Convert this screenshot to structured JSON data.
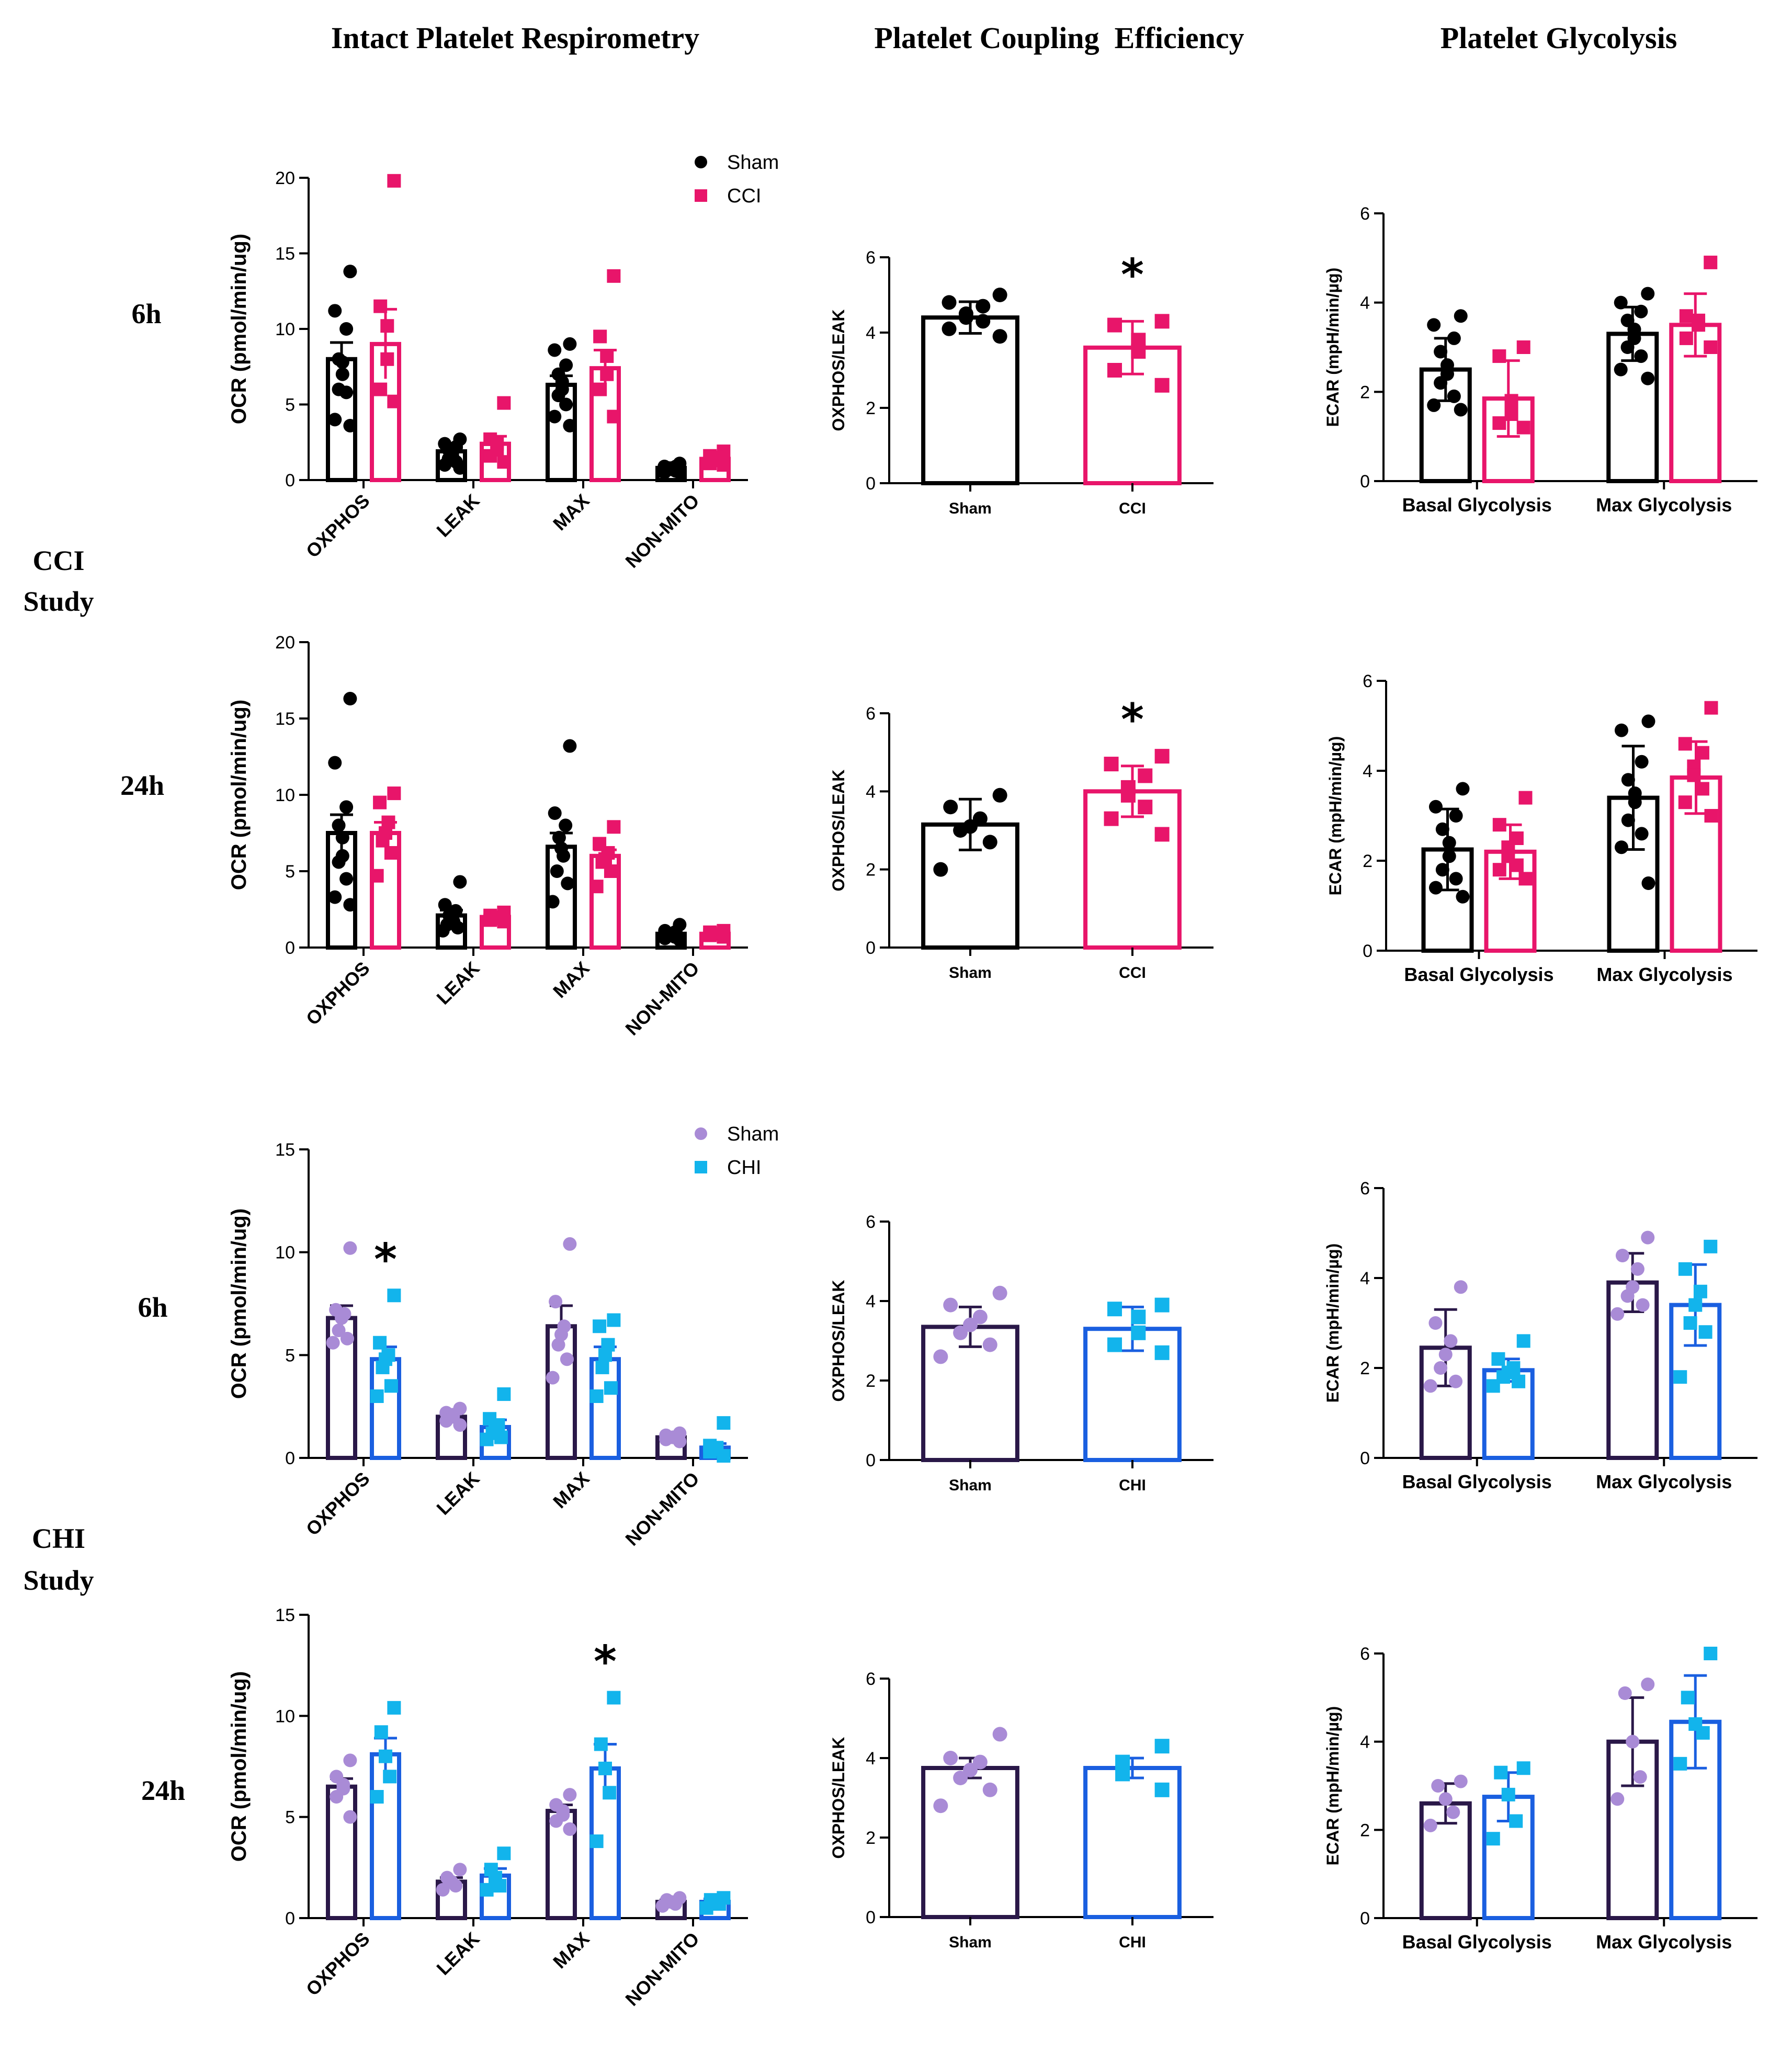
{
  "column_titles": [
    "Intact Platelet Respirometry",
    "Platelet Coupling  Efficiency",
    "Platelet Glycolysis"
  ],
  "study_labels": {
    "cci": [
      "CCI",
      "Study"
    ],
    "chi": [
      "CHI",
      "Study"
    ]
  },
  "time_labels": [
    "6h",
    "24h",
    "6h",
    "24h"
  ],
  "colors": {
    "sham_cci": "#000000",
    "cci": "#E8156A",
    "sham_chi_fill": "#A98BD6",
    "sham_chi_bar": "#2A1848",
    "chi_fill": "#12B4EC",
    "chi_bar": "#1A5FE0"
  },
  "chart_data": [
    {
      "type": "bar",
      "title": "Intact Platelet Respirometry",
      "row": "CCI 6h",
      "ylabel": "OCR (pmol/min/ug)",
      "ylim": [
        0,
        20
      ],
      "yticks": [
        0,
        5,
        10,
        15,
        20
      ],
      "categories": [
        "OXPHOS",
        "LEAK",
        "MAX",
        "NON-MITO"
      ],
      "legend": [
        "Sham",
        "CCI"
      ],
      "legend_position": "top-right",
      "series": [
        {
          "name": "Sham",
          "values": [
            8.0,
            1.9,
            6.3,
            0.8
          ],
          "errors": [
            1.1,
            0.25,
            0.6,
            0.1
          ],
          "points": [
            [
              13.8,
              11.2,
              10.0,
              8.0,
              7.8,
              7.0,
              6.0,
              5.8,
              4.0,
              3.6
            ],
            [
              2.7,
              2.4,
              2.2,
              2.0,
              1.8,
              1.6,
              1.4,
              1.2,
              1.0,
              0.8
            ],
            [
              9.0,
              8.6,
              7.6,
              7.0,
              6.5,
              6.0,
              5.6,
              5.0,
              4.2,
              3.6
            ],
            [
              1.1,
              0.9,
              0.9,
              0.8,
              0.8,
              0.7,
              0.7,
              0.6,
              0.5,
              0.5
            ]
          ]
        },
        {
          "name": "CCI",
          "values": [
            9.0,
            2.4,
            7.4,
            1.4
          ],
          "errors": [
            2.3,
            0.5,
            1.2,
            0.3
          ],
          "points": [
            [
              19.8,
              11.5,
              10.2,
              8.0,
              6.0,
              5.2
            ],
            [
              5.1,
              2.7,
              2.4,
              2.0,
              1.6,
              1.2
            ],
            [
              13.5,
              9.5,
              8.2,
              7.0,
              6.0,
              4.2
            ],
            [
              1.9,
              1.6,
              1.5,
              1.3,
              1.1,
              1.0
            ]
          ]
        }
      ],
      "significant": []
    },
    {
      "type": "bar",
      "title": "Platelet Coupling  Efficiency",
      "row": "CCI 6h",
      "ylabel": "OXPHOS/LEAK",
      "ylim": [
        0,
        6
      ],
      "yticks": [
        0,
        2,
        4,
        6
      ],
      "categories": [
        "Sham",
        "CCI"
      ],
      "values": [
        4.4,
        3.6
      ],
      "errors": [
        0.42,
        0.7
      ],
      "points": [
        [
          5.0,
          4.8,
          4.7,
          4.5,
          4.4,
          4.3,
          4.1,
          3.9
        ],
        [
          4.3,
          4.2,
          3.8,
          3.5,
          3.0,
          2.6
        ]
      ],
      "significant": [
        "CCI"
      ]
    },
    {
      "type": "bar",
      "title": "Platelet Glycolysis",
      "row": "CCI 6h",
      "ylabel": "ECAR (mpH/min/µg)",
      "ylim": [
        0,
        6
      ],
      "yticks": [
        0,
        2,
        4,
        6
      ],
      "categories": [
        "Basal Glycolysis",
        "Max Glycolysis"
      ],
      "series": [
        {
          "name": "Sham",
          "values": [
            2.5,
            3.3
          ],
          "errors": [
            0.7,
            0.6
          ],
          "points": [
            [
              3.7,
              3.5,
              3.2,
              2.9,
              2.6,
              2.4,
              2.2,
              1.9,
              1.7,
              1.6
            ],
            [
              4.2,
              4.0,
              3.8,
              3.6,
              3.4,
              3.2,
              3.0,
              2.8,
              2.5,
              2.3
            ]
          ]
        },
        {
          "name": "CCI",
          "values": [
            1.85,
            3.5
          ],
          "errors": [
            0.85,
            0.7
          ],
          "points": [
            [
              3.0,
              2.8,
              1.8,
              1.5,
              1.3,
              1.2
            ],
            [
              4.9,
              3.7,
              3.6,
              3.5,
              3.2,
              3.0
            ]
          ]
        }
      ]
    },
    {
      "type": "bar",
      "title": "Intact Platelet Respirometry",
      "row": "CCI 24h",
      "ylabel": "OCR (pmol/min/ug)",
      "ylim": [
        0,
        20
      ],
      "yticks": [
        0,
        5,
        10,
        15,
        20
      ],
      "categories": [
        "OXPHOS",
        "LEAK",
        "MAX",
        "NON-MITO"
      ],
      "series": [
        {
          "name": "Sham",
          "values": [
            7.5,
            2.1,
            6.6,
            0.9
          ],
          "errors": [
            1.2,
            0.35,
            0.9,
            0.1
          ],
          "points": [
            [
              16.3,
              12.1,
              9.2,
              8.0,
              7.2,
              6.0,
              5.6,
              4.5,
              3.3,
              2.8
            ],
            [
              4.3,
              2.8,
              2.4,
              2.1,
              1.9,
              1.7,
              1.5,
              1.3,
              1.1
            ],
            [
              13.2,
              8.8,
              8.0,
              7.2,
              6.5,
              6.0,
              5.0,
              4.2,
              3.0
            ],
            [
              1.5,
              1.1,
              1.0,
              0.9,
              0.8,
              0.7,
              0.6,
              0.5
            ]
          ]
        },
        {
          "name": "CCI",
          "values": [
            7.5,
            2.0,
            6.0,
            0.9
          ],
          "errors": [
            0.7,
            0.15,
            0.4,
            0.1
          ],
          "points": [
            [
              10.1,
              9.5,
              8.2,
              7.5,
              7.0,
              6.2,
              4.7
            ],
            [
              2.3,
              2.1,
              2.0,
              1.9,
              1.8,
              1.7
            ],
            [
              7.9,
              6.8,
              6.2,
              5.8,
              5.6,
              5.0,
              4.0
            ],
            [
              1.1,
              1.0,
              0.9,
              0.9,
              0.8,
              0.7
            ]
          ]
        }
      ]
    },
    {
      "type": "bar",
      "title": "Platelet Coupling  Efficiency",
      "row": "CCI 24h",
      "ylabel": "OXPHOS/LEAK",
      "ylim": [
        0,
        6
      ],
      "yticks": [
        0,
        2,
        4,
        6
      ],
      "categories": [
        "Sham",
        "CCI"
      ],
      "values": [
        3.15,
        4.0
      ],
      "errors": [
        0.65,
        0.65
      ],
      "points": [
        [
          3.9,
          3.6,
          3.3,
          3.1,
          3.0,
          2.7,
          2.0
        ],
        [
          4.9,
          4.7,
          4.4,
          4.1,
          3.9,
          3.6,
          3.3,
          2.9
        ]
      ],
      "significant": [
        "CCI"
      ]
    },
    {
      "type": "bar",
      "title": "Platelet Glycolysis",
      "row": "CCI 24h",
      "ylabel": "ECAR (mpH/min/µg)",
      "ylim": [
        0,
        6
      ],
      "yticks": [
        0,
        2,
        4,
        6
      ],
      "categories": [
        "Basal Glycolysis",
        "Max Glycolysis"
      ],
      "series": [
        {
          "name": "Sham",
          "values": [
            2.25,
            3.4
          ],
          "errors": [
            0.9,
            1.15
          ],
          "points": [
            [
              3.6,
              3.2,
              3.0,
              2.7,
              2.4,
              2.1,
              1.8,
              1.6,
              1.4,
              1.2
            ],
            [
              5.1,
              4.9,
              4.2,
              3.8,
              3.5,
              3.3,
              2.9,
              2.6,
              2.3,
              1.5
            ]
          ]
        },
        {
          "name": "CCI",
          "values": [
            2.2,
            3.85
          ],
          "errors": [
            0.6,
            0.8
          ],
          "points": [
            [
              3.4,
              2.8,
              2.5,
              2.3,
              2.1,
              1.9,
              1.8,
              1.6
            ],
            [
              5.4,
              4.6,
              4.4,
              4.1,
              3.9,
              3.6,
              3.3,
              3.0
            ]
          ]
        }
      ]
    },
    {
      "type": "bar",
      "title": "Intact Platelet Respirometry",
      "row": "CHI 6h",
      "ylabel": "OCR (pmol/min/ug)",
      "ylim": [
        0,
        15
      ],
      "yticks": [
        0,
        5,
        10,
        15
      ],
      "categories": [
        "OXPHOS",
        "LEAK",
        "MAX",
        "NON-MITO"
      ],
      "legend": [
        "Sham",
        "CHI"
      ],
      "legend_position": "top-right",
      "series": [
        {
          "name": "Sham",
          "values": [
            6.8,
            2.0,
            6.4,
            1.0
          ],
          "errors": [
            0.6,
            0.15,
            1.0,
            0.1
          ],
          "points": [
            [
              10.2,
              7.2,
              7.0,
              6.8,
              6.2,
              5.8,
              5.6
            ],
            [
              2.4,
              2.2,
              2.1,
              2.0,
              1.8,
              1.6
            ],
            [
              10.4,
              7.6,
              6.4,
              6.0,
              5.5,
              4.8,
              3.9
            ],
            [
              1.2,
              1.1,
              1.0,
              1.0,
              0.9,
              0.8
            ]
          ]
        },
        {
          "name": "CHI",
          "values": [
            4.8,
            1.5,
            4.8,
            0.5
          ],
          "errors": [
            0.6,
            0.35,
            0.6,
            0.2
          ],
          "points": [
            [
              7.9,
              5.6,
              5.0,
              4.8,
              4.4,
              3.5,
              3.0
            ],
            [
              3.1,
              1.9,
              1.6,
              1.4,
              1.2,
              1.0,
              0.9
            ],
            [
              6.7,
              6.4,
              5.5,
              5.0,
              4.4,
              3.4,
              3.0
            ],
            [
              1.7,
              0.6,
              0.5,
              0.4,
              0.3,
              0.1
            ]
          ]
        }
      ],
      "significant": [
        "OXPHOS"
      ]
    },
    {
      "type": "bar",
      "title": "Platelet Coupling  Efficiency",
      "row": "CHI 6h",
      "ylabel": "OXPHOS/LEAK",
      "ylim": [
        0,
        6
      ],
      "yticks": [
        0,
        2,
        4,
        6
      ],
      "categories": [
        "Sham",
        "CHI"
      ],
      "values": [
        3.35,
        3.3
      ],
      "errors": [
        0.5,
        0.55
      ],
      "points": [
        [
          4.2,
          3.9,
          3.6,
          3.4,
          3.2,
          2.9,
          2.6
        ],
        [
          3.9,
          3.8,
          3.6,
          3.2,
          2.9,
          2.7
        ]
      ],
      "significant": []
    },
    {
      "type": "bar",
      "title": "Platelet Glycolysis",
      "row": "CHI 6h",
      "ylabel": "ECAR (mpH/min/µg)",
      "ylim": [
        0,
        6
      ],
      "yticks": [
        0,
        2,
        4,
        6
      ],
      "categories": [
        "Basal Glycolysis",
        "Max Glycolysis"
      ],
      "series": [
        {
          "name": "Sham",
          "values": [
            2.45,
            3.9
          ],
          "errors": [
            0.85,
            0.65
          ],
          "points": [
            [
              3.8,
              3.0,
              2.6,
              2.3,
              2.0,
              1.7,
              1.6
            ],
            [
              4.9,
              4.5,
              4.2,
              3.8,
              3.6,
              3.4,
              3.2
            ]
          ]
        },
        {
          "name": "CHI",
          "values": [
            1.95,
            3.4
          ],
          "errors": [
            0.25,
            0.9
          ],
          "points": [
            [
              2.6,
              2.2,
              2.0,
              1.9,
              1.8,
              1.7,
              1.6
            ],
            [
              4.7,
              4.2,
              3.7,
              3.4,
              3.0,
              2.8,
              1.8
            ]
          ]
        }
      ]
    },
    {
      "type": "bar",
      "title": "Intact Platelet Respirometry",
      "row": "CHI 24h",
      "ylabel": "OCR (pmol/min/ug)",
      "ylim": [
        0,
        15
      ],
      "yticks": [
        0,
        5,
        10,
        15
      ],
      "categories": [
        "OXPHOS",
        "LEAK",
        "MAX",
        "NON-MITO"
      ],
      "series": [
        {
          "name": "Sham",
          "values": [
            6.5,
            1.8,
            5.3,
            0.8
          ],
          "errors": [
            0.4,
            0.2,
            0.3,
            0.1
          ],
          "points": [
            [
              7.8,
              7.0,
              6.6,
              6.4,
              6.0,
              5.0
            ],
            [
              2.4,
              2.0,
              1.8,
              1.6,
              1.4
            ],
            [
              6.1,
              5.6,
              5.3,
              5.1,
              4.8,
              4.4
            ],
            [
              1.0,
              0.9,
              0.8,
              0.7,
              0.6
            ]
          ]
        },
        {
          "name": "CHI",
          "values": [
            8.1,
            2.1,
            7.4,
            0.8
          ],
          "errors": [
            0.8,
            0.35,
            1.2,
            0.15
          ],
          "points": [
            [
              10.4,
              9.2,
              8.0,
              7.0,
              6.0
            ],
            [
              3.2,
              2.4,
              2.0,
              1.6,
              1.4
            ],
            [
              10.9,
              8.6,
              7.4,
              6.2,
              3.8
            ],
            [
              1.0,
              0.9,
              0.8,
              0.7,
              0.5
            ]
          ]
        }
      ],
      "significant": [
        "MAX"
      ]
    },
    {
      "type": "bar",
      "title": "Platelet Coupling  Efficiency",
      "row": "CHI 24h",
      "ylabel": "OXPHOS/LEAK",
      "ylim": [
        0,
        6
      ],
      "yticks": [
        0,
        2,
        4,
        6
      ],
      "categories": [
        "Sham",
        "CHI"
      ],
      "values": [
        3.75,
        3.75
      ],
      "errors": [
        0.25,
        0.25
      ],
      "points": [
        [
          4.6,
          4.0,
          3.9,
          3.7,
          3.5,
          3.2,
          2.8
        ],
        [
          4.3,
          3.9,
          3.6,
          3.2
        ]
      ],
      "significant": []
    },
    {
      "type": "bar",
      "title": "Platelet Glycolysis",
      "row": "CHI 24h",
      "ylabel": "ECAR (mpH/min/µg)",
      "ylim": [
        0,
        6
      ],
      "yticks": [
        0,
        2,
        4,
        6
      ],
      "categories": [
        "Basal Glycolysis",
        "Max Glycolysis"
      ],
      "series": [
        {
          "name": "Sham",
          "values": [
            2.6,
            4.0
          ],
          "errors": [
            0.45,
            1.0
          ],
          "points": [
            [
              3.1,
              3.0,
              2.7,
              2.4,
              2.1
            ],
            [
              5.3,
              5.1,
              4.0,
              3.2,
              2.7
            ]
          ]
        },
        {
          "name": "CHI",
          "values": [
            2.75,
            4.45
          ],
          "errors": [
            0.55,
            1.05
          ],
          "points": [
            [
              3.4,
              3.3,
              2.8,
              2.2,
              1.8
            ],
            [
              6.0,
              5.0,
              4.4,
              4.2,
              3.5
            ]
          ]
        }
      ]
    }
  ]
}
